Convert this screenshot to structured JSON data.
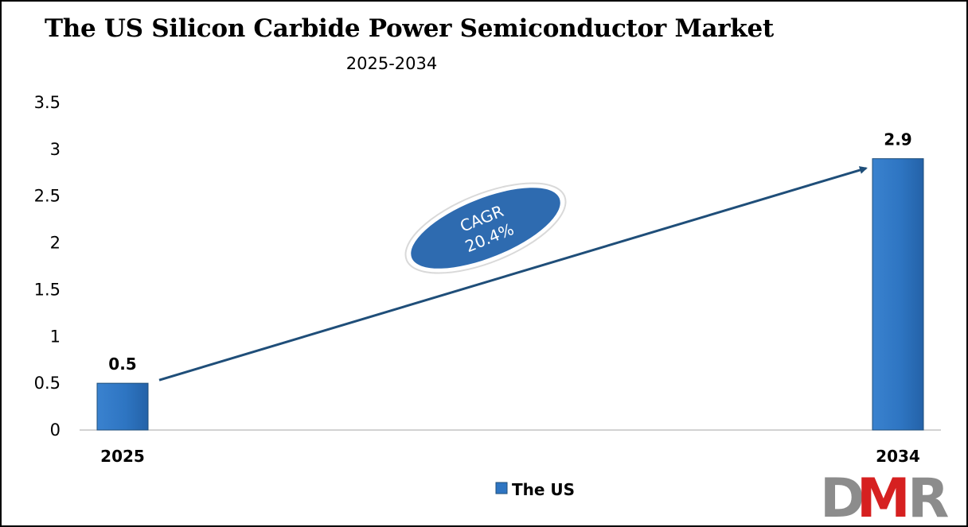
{
  "chart_data": {
    "type": "bar",
    "title": "The US Silicon Carbide Power Semiconductor Market",
    "subtitle": "2025-2034",
    "categories": [
      "2025",
      "2034"
    ],
    "series": [
      {
        "name": "The US",
        "values": [
          0.5,
          2.9
        ],
        "data_labels": [
          "0.5",
          "2.9"
        ]
      }
    ],
    "ylim": [
      0,
      3.5
    ],
    "yticks": [
      "0",
      "0.5",
      "1",
      "1.5",
      "2",
      "2.5",
      "3",
      "3.5"
    ],
    "grid": false,
    "legend_position": "bottom",
    "annotation": {
      "line1": "CAGR",
      "line2": "20.4%"
    },
    "colors": {
      "bar": "#2e75c2",
      "bar_edge": "#1f4e79",
      "arrow": "#1f4e79",
      "cagr_fill": "#2e6bb0"
    }
  },
  "logo": {
    "text": "DMR",
    "colors": {
      "d": "#8c8c8c",
      "m": "#d62020",
      "r": "#8c8c8c"
    }
  }
}
